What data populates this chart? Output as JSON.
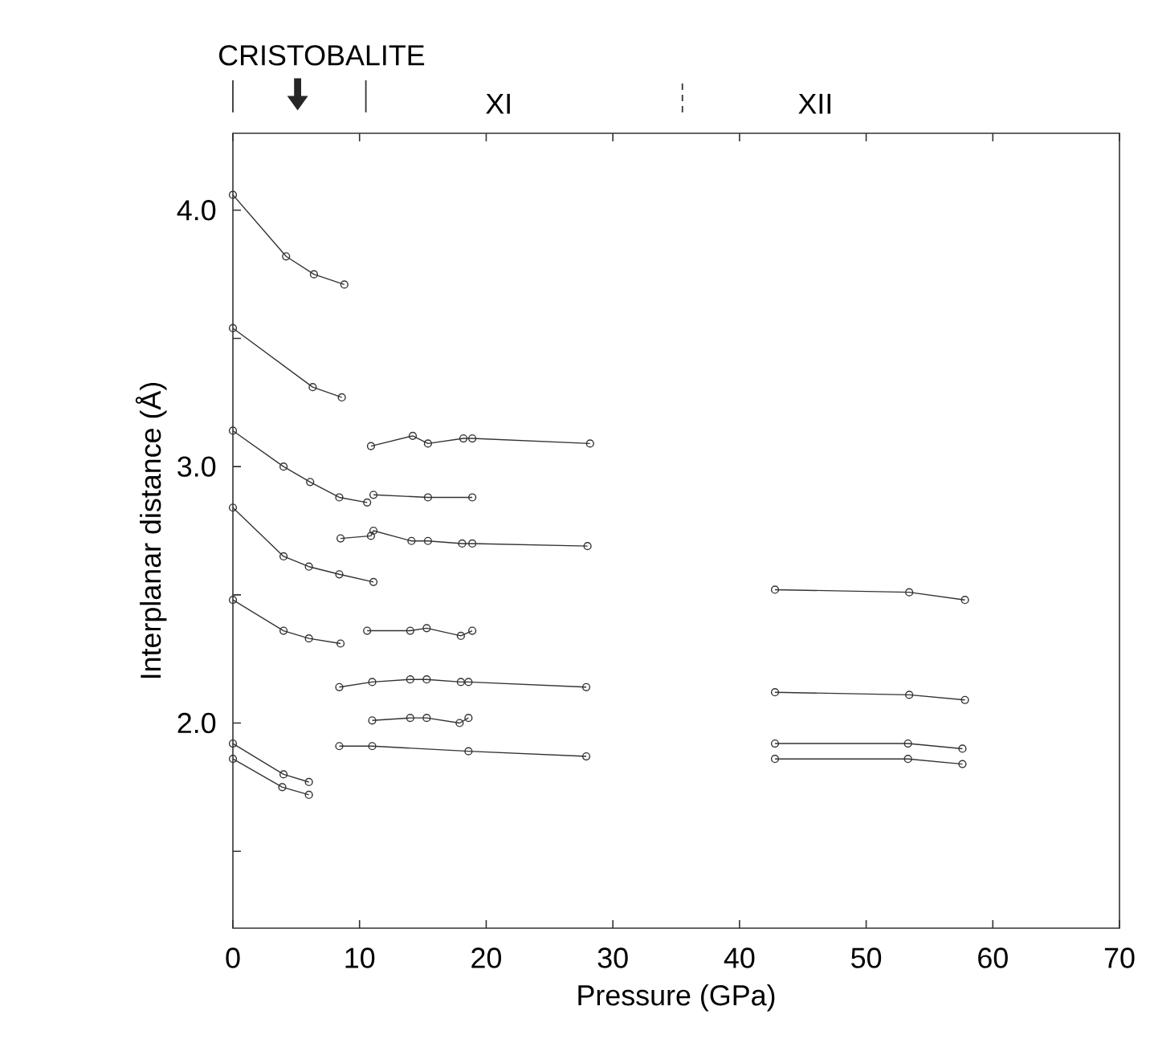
{
  "chart_data": {
    "type": "line",
    "xlabel": "Pressure (GPa)",
    "ylabel": "Interplanar distance (Å)",
    "xlim": [
      0,
      70
    ],
    "xticks": [
      0,
      10,
      20,
      30,
      40,
      50,
      60,
      70
    ],
    "ylim": [
      1.2,
      4.3
    ],
    "yticks": [
      {
        "value": 1.5,
        "label": null
      },
      {
        "value": 2,
        "label": "2.0"
      },
      {
        "value": 2.5,
        "label": null
      },
      {
        "value": 3,
        "label": "3.0"
      },
      {
        "value": 3.5,
        "label": null
      },
      {
        "value": 4,
        "label": "4.0"
      }
    ],
    "grid": false,
    "marker": "circle",
    "line_style": "solid",
    "annotations": [
      "CRISTOBALITE",
      "XI",
      "XII"
    ],
    "series": [
      {
        "color": "#333333",
        "x": [
          0,
          4.2,
          6.4,
          8.8
        ],
        "values": [
          4.06,
          3.82,
          3.75,
          3.71
        ]
      },
      {
        "color": "#333333",
        "x": [
          0,
          6.3,
          8.6
        ],
        "values": [
          3.54,
          3.31,
          3.27
        ]
      },
      {
        "color": "#333333",
        "x": [
          0,
          4.0,
          6.1,
          8.4,
          10.6
        ],
        "values": [
          3.14,
          3.0,
          2.94,
          2.88,
          2.86
        ]
      },
      {
        "color": "#333333",
        "x": [
          0,
          4.0,
          6.0,
          8.4,
          11.1
        ],
        "values": [
          2.84,
          2.65,
          2.61,
          2.58,
          2.55
        ]
      },
      {
        "color": "#333333",
        "x": [
          0,
          4.0,
          6.0,
          8.5
        ],
        "values": [
          2.48,
          2.36,
          2.33,
          2.31
        ]
      },
      {
        "color": "#333333",
        "x": [
          0,
          4.0,
          6.0
        ],
        "values": [
          1.92,
          1.8,
          1.77
        ]
      },
      {
        "color": "#333333",
        "x": [
          0,
          3.9,
          6.0
        ],
        "values": [
          1.86,
          1.75,
          1.72
        ]
      },
      {
        "color": "#333333",
        "x": [
          10.9,
          14.2,
          15.4,
          18.2,
          18.9,
          28.2
        ],
        "values": [
          3.08,
          3.12,
          3.09,
          3.11,
          3.11,
          3.09
        ]
      },
      {
        "color": "#333333",
        "x": [
          11.1,
          15.4,
          18.9
        ],
        "values": [
          2.89,
          2.88,
          2.88
        ]
      },
      {
        "color": "#333333",
        "x": [
          8.5,
          10.9,
          11.1,
          14.1,
          15.4,
          18.1,
          18.9,
          28.0
        ],
        "values": [
          2.72,
          2.73,
          2.75,
          2.71,
          2.71,
          2.7,
          2.7,
          2.69
        ]
      },
      {
        "color": "#333333",
        "x": [
          10.6,
          14.0,
          15.3,
          18.0,
          18.9
        ],
        "values": [
          2.36,
          2.36,
          2.37,
          2.34,
          2.36
        ]
      },
      {
        "color": "#333333",
        "x": [
          8.4,
          11.0,
          14.0,
          15.3,
          18.0,
          18.6,
          27.9
        ],
        "values": [
          2.14,
          2.16,
          2.17,
          2.17,
          2.16,
          2.16,
          2.14
        ]
      },
      {
        "color": "#333333",
        "x": [
          11.0,
          14.0,
          15.3,
          17.9,
          18.6
        ],
        "values": [
          2.01,
          2.02,
          2.02,
          2.0,
          2.02
        ]
      },
      {
        "color": "#333333",
        "x": [
          8.4,
          11.0,
          18.6,
          27.9
        ],
        "values": [
          1.91,
          1.91,
          1.89,
          1.87
        ]
      },
      {
        "color": "#333333",
        "x": [
          42.8,
          53.4,
          57.8
        ],
        "values": [
          2.52,
          2.51,
          2.48
        ]
      },
      {
        "color": "#333333",
        "x": [
          42.8,
          53.4,
          57.8
        ],
        "values": [
          2.12,
          2.11,
          2.09
        ]
      },
      {
        "color": "#333333",
        "x": [
          42.8,
          53.3,
          57.6
        ],
        "values": [
          1.92,
          1.92,
          1.9
        ]
      },
      {
        "color": "#333333",
        "x": [
          42.8,
          53.3,
          57.6
        ],
        "values": [
          1.86,
          1.86,
          1.84
        ]
      }
    ]
  }
}
